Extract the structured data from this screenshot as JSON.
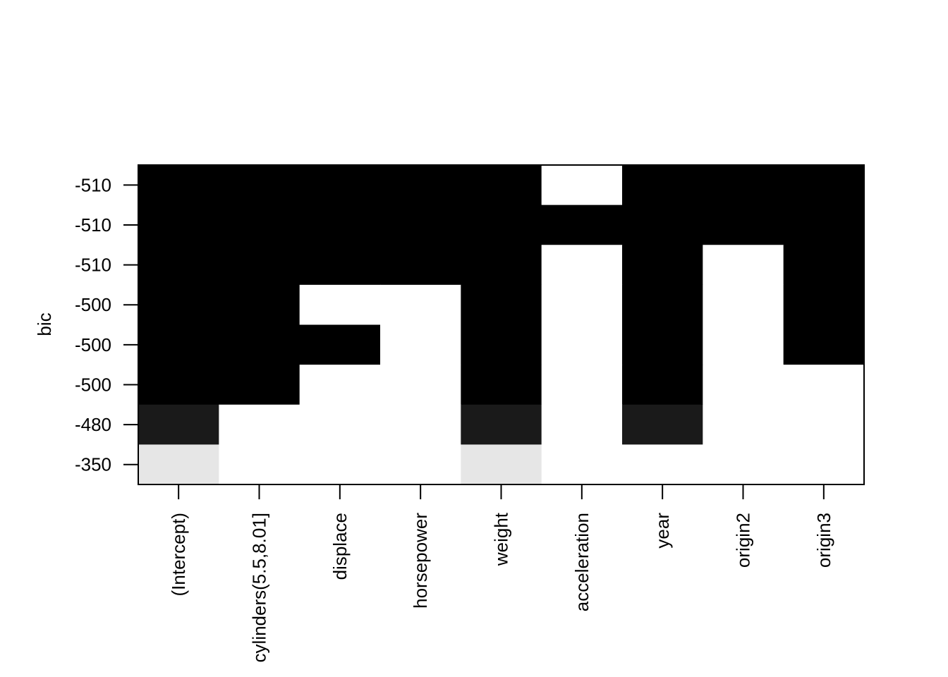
{
  "chart_data": {
    "type": "heatmap",
    "title": "",
    "xlabel": "",
    "ylabel": "bic",
    "variables": [
      "(Intercept)",
      "cylinders(5.5,8.01]",
      "displace",
      "horsepower",
      "weight",
      "acceleration",
      "year",
      "origin2",
      "origin3"
    ],
    "rows_top_to_bottom": [
      {
        "bic_label": "-510",
        "included": [
          1,
          1,
          1,
          1,
          1,
          0,
          1,
          1,
          1
        ]
      },
      {
        "bic_label": "-510",
        "included": [
          1,
          1,
          1,
          1,
          1,
          1,
          1,
          1,
          1
        ]
      },
      {
        "bic_label": "-510",
        "included": [
          1,
          1,
          1,
          1,
          1,
          0,
          1,
          0,
          1
        ]
      },
      {
        "bic_label": "-500",
        "included": [
          1,
          1,
          0,
          0,
          1,
          0,
          1,
          0,
          1
        ]
      },
      {
        "bic_label": "-500",
        "included": [
          1,
          1,
          1,
          0,
          1,
          0,
          1,
          0,
          1
        ]
      },
      {
        "bic_label": "-500",
        "included": [
          1,
          1,
          0,
          0,
          1,
          0,
          1,
          0,
          0
        ]
      },
      {
        "bic_label": "-480",
        "included": [
          1,
          0,
          0,
          0,
          1,
          0,
          1,
          0,
          0
        ]
      },
      {
        "bic_label": "-350",
        "included": [
          1,
          0,
          0,
          0,
          1,
          0,
          0,
          0,
          0
        ]
      }
    ],
    "shade_by_row": [
      "#000000",
      "#000000",
      "#000000",
      "#000000",
      "#000000",
      "#000000",
      "#1a1a1a",
      "#e6e6e6"
    ],
    "excluded_color": "#ffffff",
    "grid": false,
    "legend": "none"
  }
}
